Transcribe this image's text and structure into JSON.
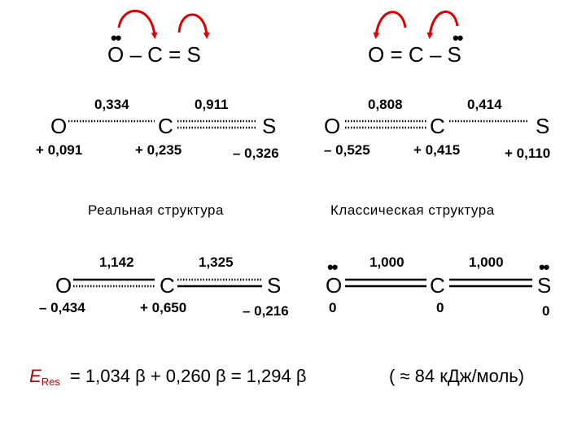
{
  "top": {
    "left_resonance": {
      "lone_pair": "••",
      "formula": "O – C = S"
    },
    "right_resonance": {
      "lone_pair": "••",
      "formula": "O = C – S"
    },
    "arrow_color": "#e00000"
  },
  "real_pi": {
    "bond_orders": [
      "0,334",
      "0,911"
    ],
    "atoms": [
      "O",
      "C",
      "S"
    ],
    "charges": [
      "+ 0,091",
      "+ 0,235",
      "– 0,326"
    ]
  },
  "classic_pi": {
    "bond_orders": [
      "0,808",
      "0,414"
    ],
    "atoms": [
      "O",
      "C",
      "S"
    ],
    "charges": [
      "– 0,525",
      "+ 0,415",
      "+ 0,110"
    ]
  },
  "captions": {
    "real": "Реальная структура",
    "classic": "Классическая структура"
  },
  "real_total": {
    "bond_orders": [
      "1,142",
      "1,325"
    ],
    "atoms": [
      "O",
      "C",
      "S"
    ],
    "charges": [
      "– 0,434",
      "+ 0,650",
      "– 0,216"
    ]
  },
  "classic_total": {
    "bond_orders": [
      "1,000",
      "1,000"
    ],
    "atoms": [
      "O",
      "C",
      "S"
    ],
    "lone_pairs": [
      "••",
      "••"
    ],
    "charges": [
      "0",
      "0",
      "0"
    ]
  },
  "equation": {
    "symbol": "E",
    "subscript": "Res",
    "expression": "=  1,034 β  +  0,260 β  =  1,294 β",
    "note": "( ≈ 84 кДж/моль)"
  }
}
